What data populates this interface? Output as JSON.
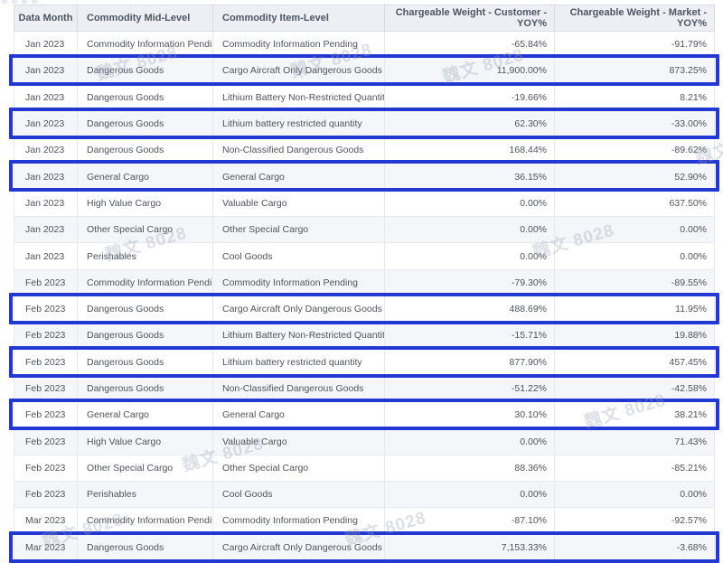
{
  "watermark": {
    "text": "魏文 8028"
  },
  "colors": {
    "highlight_border": "#2337d2",
    "header_bg": "#edeff4",
    "stripe_bg": "#f4f6f9"
  },
  "chart_data": {
    "type": "table",
    "columns": [
      "Data Month",
      "Commodity Mid-Level",
      "Commodity Item-Level",
      "Chargeable Weight - Customer - YOY%",
      "Chargeable Weight - Market - YOY%"
    ],
    "rows": [
      [
        "Jan 2023",
        "Commodity Information Pending",
        "Commodity Information Pending",
        "-65.84%",
        "-91.79%"
      ],
      [
        "Jan 2023",
        "Dangerous Goods",
        "Cargo Aircraft Only Dangerous Goods",
        "11,900.00%",
        "873.25%"
      ],
      [
        "Jan 2023",
        "Dangerous Goods",
        "Lithium Battery Non-Restricted Quantity",
        "-19.66%",
        "8.21%"
      ],
      [
        "Jan 2023",
        "Dangerous Goods",
        "Lithium battery restricted quantity",
        "62.30%",
        "-33.00%"
      ],
      [
        "Jan 2023",
        "Dangerous Goods",
        "Non-Classified Dangerous Goods",
        "168.44%",
        "-89.62%"
      ],
      [
        "Jan 2023",
        "General Cargo",
        "General Cargo",
        "36.15%",
        "52.90%"
      ],
      [
        "Jan 2023",
        "High Value Cargo",
        "Valuable Cargo",
        "0.00%",
        "637.50%"
      ],
      [
        "Jan 2023",
        "Other Special Cargo",
        "Other Special Cargo",
        "0.00%",
        "0.00%"
      ],
      [
        "Jan 2023",
        "Perishables",
        "Cool Goods",
        "0.00%",
        "0.00%"
      ],
      [
        "Feb 2023",
        "Commodity Information Pending",
        "Commodity Information Pending",
        "-79.30%",
        "-89.55%"
      ],
      [
        "Feb 2023",
        "Dangerous Goods",
        "Cargo Aircraft Only Dangerous Goods",
        "488.69%",
        "11.95%"
      ],
      [
        "Feb 2023",
        "Dangerous Goods",
        "Lithium Battery Non-Restricted Quantity",
        "-15.71%",
        "19.88%"
      ],
      [
        "Feb 2023",
        "Dangerous Goods",
        "Lithium battery restricted quantity",
        "877.90%",
        "457.45%"
      ],
      [
        "Feb 2023",
        "Dangerous Goods",
        "Non-Classified Dangerous Goods",
        "-51.22%",
        "-42.58%"
      ],
      [
        "Feb 2023",
        "General Cargo",
        "General Cargo",
        "30.10%",
        "38.21%"
      ],
      [
        "Feb 2023",
        "High Value Cargo",
        "Valuable Cargo",
        "0.00%",
        "71.43%"
      ],
      [
        "Feb 2023",
        "Other Special Cargo",
        "Other Special Cargo",
        "88.36%",
        "-85.21%"
      ],
      [
        "Feb 2023",
        "Perishables",
        "Cool Goods",
        "0.00%",
        "0.00%"
      ],
      [
        "Mar 2023",
        "Commodity Information Pending",
        "Commodity Information Pending",
        "-87.10%",
        "-92.57%"
      ],
      [
        "Mar 2023",
        "Dangerous Goods",
        "Cargo Aircraft Only Dangerous Goods",
        "7,153.33%",
        "-3.68%"
      ]
    ],
    "highlighted_rows": [
      1,
      3,
      5,
      10,
      12,
      14,
      19
    ]
  }
}
